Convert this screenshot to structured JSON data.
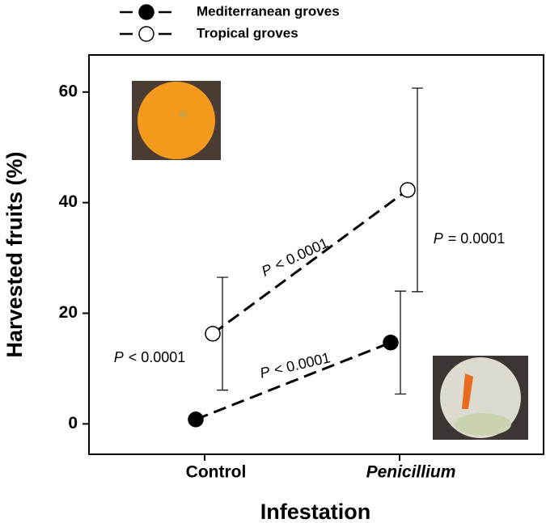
{
  "chart_data": {
    "type": "line",
    "x_label": "Infestation",
    "y_label": "Harvested fruits (%)",
    "categories": [
      "Control",
      "Penicillium"
    ],
    "series": [
      {
        "name": "Mediterranean groves",
        "color": "#000000",
        "marker_fill": "#000000",
        "values": [
          0.8,
          14.7
        ],
        "errors": [
          null,
          9.3
        ]
      },
      {
        "name": "Tropical groves",
        "color": "#000000",
        "marker_fill": "#ffffff",
        "values": [
          16.3,
          42.3
        ],
        "errors": [
          10.2,
          18.4
        ]
      }
    ],
    "ylim": [
      -5.5,
      66.7
    ],
    "yticks": [
      0,
      20,
      40,
      60
    ],
    "annotations": [
      {
        "italic": "P",
        "text": "< 0.0001"
      },
      {
        "italic": "P",
        "text": "< 0.0001"
      },
      {
        "italic": "P",
        "text": "< 0.0001"
      },
      {
        "italic": "P",
        "text": "= 0.0001"
      }
    ]
  }
}
